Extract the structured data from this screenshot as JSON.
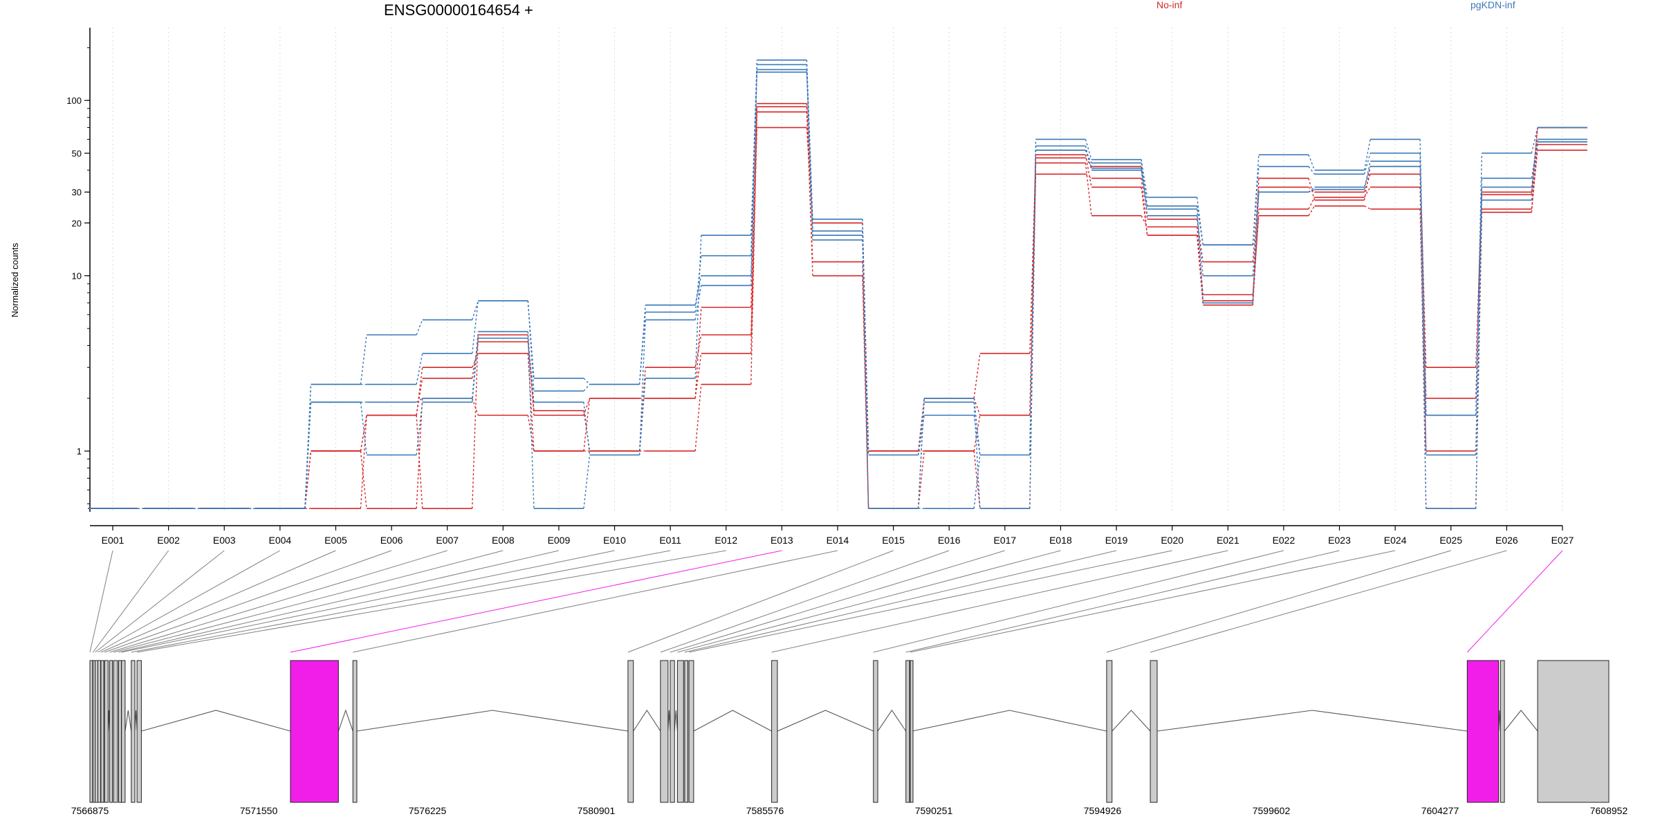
{
  "title": "ENSG00000164654 +",
  "ylabel": "Normalized counts",
  "colors": {
    "No-inf": "#d62728",
    "pgKDN-inf": "#3a78b8",
    "highlight": "#f01ee8",
    "exon_fill": "#cccccc",
    "axis": "#000000",
    "grid": "#d9d9d9",
    "link": "#808080"
  },
  "chart_data": {
    "type": "line",
    "yscale": "log",
    "ylim": [
      0.45,
      260
    ],
    "yticks": [
      1,
      10,
      20,
      30,
      50,
      100
    ],
    "ytick_labels": [
      "1",
      "10",
      "20",
      "30",
      "50",
      "100"
    ],
    "zero_floor": 0.47,
    "categories": [
      "E001",
      "E002",
      "E003",
      "E004",
      "E005",
      "E006",
      "E007",
      "E008",
      "E009",
      "E010",
      "E011",
      "E012",
      "E013",
      "E014",
      "E015",
      "E016",
      "E017",
      "E018",
      "E019",
      "E020",
      "E021",
      "E022",
      "E023",
      "E024",
      "E025",
      "E026",
      "E027"
    ],
    "highlighted_exons": [
      "E013",
      "E027"
    ],
    "legend": [
      "No-inf",
      "pgKDN-inf"
    ],
    "legend_position": "top-right",
    "series": [
      {
        "group": "No-inf",
        "values": [
          0,
          0,
          0,
          0,
          1,
          1.6,
          2.6,
          4.2,
          1.7,
          1.0,
          1.0,
          2.4,
          92,
          20,
          1,
          2.0,
          3.6,
          47,
          42,
          21,
          12,
          32,
          30,
          38,
          2.0,
          30,
          70
        ]
      },
      {
        "group": "No-inf",
        "values": [
          0,
          0,
          0,
          0,
          0,
          1.6,
          0,
          4.6,
          1.6,
          2.0,
          2.0,
          3.6,
          86,
          12,
          0,
          2.0,
          1.6,
          38,
          36,
          17,
          7.2,
          36,
          27,
          42,
          3.0,
          29,
          70
        ]
      },
      {
        "group": "No-inf",
        "values": [
          0,
          0,
          0,
          0,
          1,
          1.6,
          3.0,
          3.6,
          1.0,
          1.0,
          3.0,
          4.6,
          70,
          20,
          1,
          1.0,
          0,
          44,
          22,
          19,
          7.8,
          22,
          25,
          24,
          1.0,
          24,
          52
        ]
      },
      {
        "group": "No-inf",
        "values": [
          0,
          0,
          0,
          0,
          1,
          0,
          2.0,
          1.6,
          1.0,
          2.0,
          2.0,
          6.6,
          96,
          10,
          0,
          1.0,
          1.6,
          49,
          32,
          17,
          6.8,
          24,
          28,
          32,
          0,
          23,
          56
        ]
      },
      {
        "group": "pgKDN-inf",
        "values": [
          0,
          0,
          0,
          0,
          2.4,
          4.6,
          5.6,
          7.2,
          2.6,
          2.4,
          6.2,
          13,
          170,
          21,
          0,
          2.0,
          0.95,
          60,
          46,
          28,
          15,
          49,
          40,
          60,
          1.6,
          50,
          70
        ]
      },
      {
        "group": "pgKDN-inf",
        "values": [
          0,
          0,
          0,
          0,
          1.9,
          0.95,
          1.9,
          4.4,
          1.9,
          0.95,
          2.6,
          17,
          160,
          16,
          0.95,
          1.6,
          0.95,
          52,
          44,
          25,
          15,
          42,
          38,
          50,
          0.95,
          36,
          58
        ]
      },
      {
        "group": "pgKDN-inf",
        "values": [
          0,
          0,
          0,
          0,
          2.4,
          2.4,
          3.6,
          7.2,
          2.2,
          2.4,
          6.8,
          10,
          150,
          18,
          0.95,
          1.9,
          0,
          55,
          40,
          22,
          10,
          30,
          32,
          42,
          0,
          27,
          60
        ]
      },
      {
        "group": "pgKDN-inf",
        "values": [
          0,
          0,
          0,
          0,
          1.9,
          1.9,
          2.0,
          4.8,
          0,
          0.95,
          5.6,
          8.8,
          145,
          17,
          0,
          0,
          0.95,
          52,
          41,
          24,
          7,
          30,
          31,
          45,
          1.6,
          32,
          58
        ]
      }
    ],
    "genomic_axis": {
      "tick_labels": [
        "7566875",
        "7571550",
        "7576225",
        "7580901",
        "7585576",
        "7590251",
        "7594926",
        "7599602",
        "7604277",
        "7608952"
      ],
      "range": [
        7566875,
        7608952
      ]
    },
    "gene_model": {
      "exons": [
        {
          "id": "E001",
          "start": 7566875,
          "end": 7566950
        },
        {
          "id": "E002",
          "start": 7566960,
          "end": 7567010
        },
        {
          "id": "E003",
          "start": 7567020,
          "end": 7567080
        },
        {
          "id": "E004",
          "start": 7567095,
          "end": 7567150
        },
        {
          "id": "E005",
          "start": 7567180,
          "end": 7567260
        },
        {
          "id": "E006",
          "start": 7567280,
          "end": 7567380
        },
        {
          "id": "E007",
          "start": 7567420,
          "end": 7567500
        },
        {
          "id": "E008",
          "start": 7567530,
          "end": 7567640
        },
        {
          "id": "E009",
          "start": 7567670,
          "end": 7567720
        },
        {
          "id": "E010",
          "start": 7567750,
          "end": 7567850
        },
        {
          "id": "E011",
          "start": 7568020,
          "end": 7568120
        },
        {
          "id": "E012",
          "start": 7568180,
          "end": 7568300
        },
        {
          "id": "E013",
          "start": 7572430,
          "end": 7573760
        },
        {
          "id": "E014",
          "start": 7574160,
          "end": 7574270
        },
        {
          "id": "E015",
          "start": 7581780,
          "end": 7581930
        },
        {
          "id": "E016",
          "start": 7582680,
          "end": 7582890
        },
        {
          "id": "E017",
          "start": 7582950,
          "end": 7583070
        },
        {
          "id": "E018",
          "start": 7583150,
          "end": 7583320
        },
        {
          "id": "E019",
          "start": 7583350,
          "end": 7583440
        },
        {
          "id": "E020",
          "start": 7583470,
          "end": 7583600
        },
        {
          "id": "E021",
          "start": 7585760,
          "end": 7585920
        },
        {
          "id": "E022",
          "start": 7588580,
          "end": 7588700
        },
        {
          "id": "E023",
          "start": 7589480,
          "end": 7589580
        },
        {
          "id": "E024",
          "start": 7589600,
          "end": 7589660
        },
        {
          "id": "E025",
          "start": 7595040,
          "end": 7595190
        },
        {
          "id": "E026",
          "start": 7596250,
          "end": 7596440
        },
        {
          "id": "E027",
          "start": 7605030,
          "end": 7605900
        },
        {
          "id": "E028",
          "start": 7605950,
          "end": 7606060
        },
        {
          "id": "E029",
          "start": 7606980,
          "end": 7608952
        }
      ],
      "connector_genomic": [
        7566875,
        7566960,
        7567020,
        7567095,
        7567180,
        7567280,
        7567420,
        7567530,
        7567670,
        7567750,
        7568020,
        7568180,
        7572430,
        7574160,
        7581780,
        7582680,
        7582950,
        7583150,
        7583350,
        7583470,
        7585760,
        7588580,
        7589480,
        7589600,
        7595040,
        7596250,
        7605030
      ]
    }
  }
}
